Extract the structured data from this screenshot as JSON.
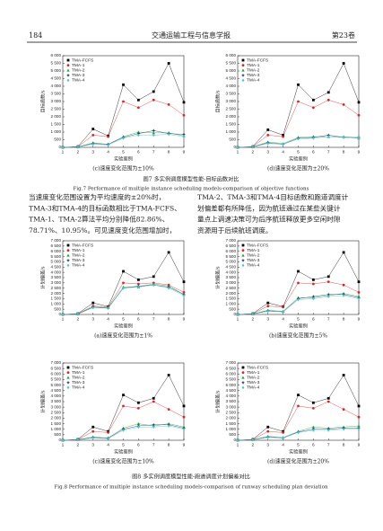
{
  "header": {
    "page": "184",
    "journal": "交通运输工程与信息学报",
    "volume": "第23卷"
  },
  "figure7": {
    "caption_cn": "图7  多实例调度模型性能-目标函数对比",
    "caption_en": "Fig.7  Performance of multiple instance scheduling models-comparison of objective functions"
  },
  "body": {
    "left_lines": [
      "当速度变化范围设置为平均速度的±20%时，",
      "TMA-3和TMA-4的目标函数相比于TMA-FCFS、",
      "TMA-1、TMA-2算法平均分别降低82.86%、",
      "78.71%、10.95%。可见速度变化范围增加时，"
    ],
    "right_lines": [
      "TMA-2、TMA-3和TMA-4目标函数和跑道调度计",
      "划偏差都有所降低，因为航班通过在某些关键计",
      "量点上调速决策可为后序航班释放更多空闲时隙",
      "资源用于后续航班调度。"
    ]
  },
  "figure8": {
    "caption_cn": "图8  多实例调度模型性能-跑道调度计划偏差对比",
    "caption_en": "Fig.8  Performance of multiple instance scheduling models-comparison of runway scheduling plan deviation"
  },
  "chart_data": [
    {
      "type": "line",
      "subtitle": "(c)速度变化范围为±10%",
      "x_label": "实验案例",
      "y_label": "目标函数/s",
      "x": [
        1,
        2,
        3,
        4,
        5,
        6,
        7,
        8,
        9
      ],
      "xlim": [
        1,
        9
      ],
      "xticks": [
        1,
        2,
        3,
        4,
        5,
        6,
        7,
        8,
        9
      ],
      "ylim": [
        0,
        6000
      ],
      "yticks": [
        0,
        500,
        {
          "value": 1000,
          "label": "1 000"
        },
        {
          "value": 1500,
          "label": "1 500"
        },
        {
          "value": 2000,
          "label": "2 000"
        },
        {
          "value": 2500,
          "label": "2 500"
        },
        {
          "value": 3000,
          "label": "3 000"
        },
        {
          "value": 3500,
          "label": "3 500"
        },
        {
          "value": 4000,
          "label": "4 000"
        },
        {
          "value": 4500,
          "label": "4 500"
        },
        {
          "value": 5000,
          "label": "5 000"
        },
        {
          "value": 5500,
          "label": "5 500"
        },
        {
          "value": 6000,
          "label": "6 000"
        }
      ],
      "series": [
        {
          "name": "TMA-FCFS",
          "color": "#000000",
          "marker": "square",
          "values": [
            0,
            50,
            1200,
            750,
            4100,
            3100,
            3650,
            5500,
            2950
          ]
        },
        {
          "name": "TMA-1",
          "color": "#d62728",
          "marker": "circle",
          "values": [
            0,
            40,
            800,
            700,
            3000,
            2600,
            3100,
            2800,
            2100
          ]
        },
        {
          "name": "TMA-2",
          "color": "#2ca02c",
          "marker": "triangle",
          "values": [
            0,
            30,
            300,
            200,
            700,
            1000,
            950,
            950,
            750
          ]
        },
        {
          "name": "TMA-3",
          "color": "#1f2f6e",
          "marker": "star",
          "values": [
            0,
            30,
            250,
            200,
            650,
            900,
            1100,
            900,
            850
          ]
        },
        {
          "name": "TMA-4",
          "color": "#3fc8d8",
          "marker": "diamond",
          "values": [
            0,
            30,
            200,
            150,
            600,
            800,
            800,
            850,
            700
          ]
        }
      ]
    },
    {
      "type": "line",
      "subtitle": "(d)速度变化范围为±20%",
      "x_label": "实验案例",
      "y_label": "目标函数/s",
      "x": [
        1,
        2,
        3,
        4,
        5,
        6,
        7,
        8,
        9
      ],
      "xlim": [
        1,
        9
      ],
      "xticks": [
        1,
        2,
        3,
        4,
        5,
        6,
        7,
        8,
        9
      ],
      "ylim": [
        0,
        6000
      ],
      "yticks": [
        0,
        500,
        {
          "value": 1000,
          "label": "1 000"
        },
        {
          "value": 1500,
          "label": "1 500"
        },
        {
          "value": 2000,
          "label": "2 000"
        },
        {
          "value": 2500,
          "label": "2 500"
        },
        {
          "value": 3000,
          "label": "3 000"
        },
        {
          "value": 3500,
          "label": "3 500"
        },
        {
          "value": 4000,
          "label": "4 000"
        },
        {
          "value": 4500,
          "label": "4 500"
        },
        {
          "value": 5000,
          "label": "5 000"
        },
        {
          "value": 5500,
          "label": "5 500"
        },
        {
          "value": 6000,
          "label": "6 000"
        }
      ],
      "series": [
        {
          "name": "TMA-FCFS",
          "color": "#000000",
          "marker": "square",
          "values": [
            0,
            50,
            1150,
            800,
            4100,
            3100,
            3600,
            5500,
            2950
          ]
        },
        {
          "name": "TMA-1",
          "color": "#d62728",
          "marker": "circle",
          "values": [
            0,
            40,
            800,
            700,
            3000,
            2600,
            3100,
            2800,
            2100
          ]
        },
        {
          "name": "TMA-2",
          "color": "#2ca02c",
          "marker": "triangle",
          "values": [
            0,
            30,
            350,
            250,
            650,
            700,
            700,
            700,
            600
          ]
        },
        {
          "name": "TMA-3",
          "color": "#1f2f6e",
          "marker": "star",
          "values": [
            0,
            30,
            300,
            200,
            600,
            650,
            800,
            650,
            650
          ]
        },
        {
          "name": "TMA-4",
          "color": "#3fc8d8",
          "marker": "diamond",
          "values": [
            0,
            25,
            250,
            200,
            550,
            600,
            700,
            650,
            600
          ]
        }
      ]
    },
    {
      "type": "line",
      "subtitle": "(a)速度变化范围为±1%",
      "x_label": "实验案例",
      "y_label": "计划偏差/s",
      "x": [
        1,
        2,
        3,
        4,
        5,
        6,
        7,
        8,
        9
      ],
      "xlim": [
        1,
        9
      ],
      "xticks": [
        1,
        2,
        3,
        4,
        5,
        6,
        7,
        8,
        9
      ],
      "ylim": [
        0,
        7000
      ],
      "yticks": [
        0,
        500,
        {
          "value": 1000,
          "label": "1 000"
        },
        {
          "value": 1500,
          "label": "1 500"
        },
        {
          "value": 2000,
          "label": "2 000"
        },
        {
          "value": 2500,
          "label": "2 500"
        },
        {
          "value": 3000,
          "label": "3 000"
        },
        {
          "value": 3500,
          "label": "3 500"
        },
        {
          "value": 4000,
          "label": "4 000"
        },
        {
          "value": 4500,
          "label": "4 500"
        },
        {
          "value": 5000,
          "label": "5 000"
        },
        {
          "value": 5500,
          "label": "5 500"
        },
        {
          "value": 6000,
          "label": "6 000"
        },
        {
          "value": 6500,
          "label": "6 500"
        },
        {
          "value": 7000,
          "label": "7 000"
        }
      ],
      "series": [
        {
          "name": "TMA-FCFS",
          "color": "#000000",
          "marker": "square",
          "values": [
            0,
            80,
            1100,
            750,
            4100,
            3300,
            3600,
            5900,
            3100
          ]
        },
        {
          "name": "TMA-1",
          "color": "#d62728",
          "marker": "circle",
          "values": [
            0,
            60,
            800,
            700,
            3000,
            2900,
            3000,
            2800,
            2100
          ]
        },
        {
          "name": "TMA-2",
          "color": "#2ca02c",
          "marker": "triangle",
          "values": [
            0,
            50,
            700,
            650,
            2600,
            2600,
            2900,
            2700,
            1900
          ]
        },
        {
          "name": "TMA-3",
          "color": "#1f2f6e",
          "marker": "star",
          "values": [
            0,
            50,
            700,
            600,
            2500,
            2700,
            2800,
            2600,
            1900
          ]
        },
        {
          "name": "TMA-4",
          "color": "#3fc8d8",
          "marker": "diamond",
          "values": [
            0,
            50,
            650,
            600,
            2500,
            2600,
            2800,
            2500,
            1800
          ]
        }
      ]
    },
    {
      "type": "line",
      "subtitle": "(b)速度变化范围为±5%",
      "x_label": "实验案例",
      "y_label": "计划偏差/s",
      "x": [
        1,
        2,
        3,
        4,
        5,
        6,
        7,
        8,
        9
      ],
      "xlim": [
        1,
        9
      ],
      "xticks": [
        1,
        2,
        3,
        4,
        5,
        6,
        7,
        8,
        9
      ],
      "ylim": [
        0,
        7000
      ],
      "yticks": [
        0,
        500,
        {
          "value": 1000,
          "label": "1 000"
        },
        {
          "value": 1500,
          "label": "1 500"
        },
        {
          "value": 2000,
          "label": "2 000"
        },
        {
          "value": 2500,
          "label": "2 500"
        },
        {
          "value": 3000,
          "label": "3 000"
        },
        {
          "value": 3500,
          "label": "3 500"
        },
        {
          "value": 4000,
          "label": "4 000"
        },
        {
          "value": 4500,
          "label": "4 500"
        },
        {
          "value": 5000,
          "label": "5 000"
        },
        {
          "value": 5500,
          "label": "5 500"
        },
        {
          "value": 6000,
          "label": "6 000"
        },
        {
          "value": 6500,
          "label": "6 500"
        },
        {
          "value": 7000,
          "label": "7 000"
        }
      ],
      "series": [
        {
          "name": "TMA-FCFS",
          "color": "#000000",
          "marker": "square",
          "values": [
            0,
            80,
            1100,
            750,
            4100,
            3300,
            3600,
            5900,
            3100
          ]
        },
        {
          "name": "TMA-1",
          "color": "#d62728",
          "marker": "circle",
          "values": [
            0,
            60,
            800,
            700,
            3000,
            2900,
            3100,
            2800,
            2100
          ]
        },
        {
          "name": "TMA-2",
          "color": "#2ca02c",
          "marker": "triangle",
          "values": [
            0,
            50,
            400,
            300,
            1600,
            1600,
            1800,
            2000,
            1700
          ]
        },
        {
          "name": "TMA-3",
          "color": "#1f2f6e",
          "marker": "star",
          "values": [
            0,
            50,
            350,
            250,
            1500,
            1700,
            1900,
            1900,
            1600
          ]
        },
        {
          "name": "TMA-4",
          "color": "#3fc8d8",
          "marker": "diamond",
          "values": [
            0,
            40,
            300,
            250,
            1400,
            1500,
            1700,
            1800,
            1500
          ]
        }
      ]
    },
    {
      "type": "line",
      "subtitle": "(c)速度变化范围为±10%",
      "x_label": "实验案例",
      "y_label": "计划偏差/s",
      "x": [
        1,
        2,
        3,
        4,
        5,
        6,
        7,
        8,
        9
      ],
      "xlim": [
        1,
        9
      ],
      "xticks": [
        1,
        2,
        3,
        4,
        5,
        6,
        7,
        8,
        9
      ],
      "ylim": [
        0,
        7000
      ],
      "yticks": [
        0,
        500,
        {
          "value": 1000,
          "label": "1 000"
        },
        {
          "value": 1500,
          "label": "1 500"
        },
        {
          "value": 2000,
          "label": "2 000"
        },
        {
          "value": 2500,
          "label": "2 500"
        },
        {
          "value": 3000,
          "label": "3 000"
        },
        {
          "value": 3500,
          "label": "3 500"
        },
        {
          "value": 4000,
          "label": "4 000"
        },
        {
          "value": 4500,
          "label": "4 500"
        },
        {
          "value": 5000,
          "label": "5 000"
        },
        {
          "value": 5500,
          "label": "5 500"
        },
        {
          "value": 6000,
          "label": "6 000"
        },
        {
          "value": 6500,
          "label": "6 500"
        },
        {
          "value": 7000,
          "label": "7 000"
        }
      ],
      "series": [
        {
          "name": "TMA-FCFS",
          "color": "#000000",
          "marker": "square",
          "values": [
            0,
            80,
            1200,
            800,
            4100,
            3400,
            3800,
            5900,
            3100
          ]
        },
        {
          "name": "TMA-1",
          "color": "#d62728",
          "marker": "circle",
          "values": [
            0,
            60,
            800,
            700,
            3100,
            2900,
            3500,
            2800,
            2100
          ]
        },
        {
          "name": "TMA-2",
          "color": "#2ca02c",
          "marker": "triangle",
          "values": [
            0,
            50,
            300,
            200,
            1100,
            1500,
            1300,
            1500,
            1200
          ]
        },
        {
          "name": "TMA-3",
          "color": "#1f2f6e",
          "marker": "star",
          "values": [
            0,
            50,
            250,
            200,
            1000,
            1300,
            1400,
            1400,
            1100
          ]
        },
        {
          "name": "TMA-4",
          "color": "#3fc8d8",
          "marker": "diamond",
          "values": [
            0,
            40,
            200,
            150,
            900,
            1200,
            1200,
            1300,
            1000
          ]
        }
      ]
    },
    {
      "type": "line",
      "subtitle": "(d)速度变化范围为±20%",
      "x_label": "实验案例",
      "y_label": "计划偏差/s",
      "x": [
        1,
        2,
        3,
        4,
        5,
        6,
        7,
        8,
        9
      ],
      "xlim": [
        1,
        9
      ],
      "xticks": [
        1,
        2,
        3,
        4,
        5,
        6,
        7,
        8,
        9
      ],
      "ylim": [
        0,
        7000
      ],
      "yticks": [
        0,
        500,
        {
          "value": 1000,
          "label": "1 000"
        },
        {
          "value": 1500,
          "label": "1 500"
        },
        {
          "value": 2000,
          "label": "2 000"
        },
        {
          "value": 2500,
          "label": "2 500"
        },
        {
          "value": 3000,
          "label": "3 000"
        },
        {
          "value": 3500,
          "label": "3 500"
        },
        {
          "value": 4000,
          "label": "4 000"
        },
        {
          "value": 4500,
          "label": "4 500"
        },
        {
          "value": 5000,
          "label": "5 000"
        },
        {
          "value": 5500,
          "label": "5 500"
        },
        {
          "value": 6000,
          "label": "6 000"
        },
        {
          "value": 6500,
          "label": "6 500"
        },
        {
          "value": 7000,
          "label": "7 000"
        }
      ],
      "series": [
        {
          "name": "TMA-FCFS",
          "color": "#000000",
          "marker": "square",
          "values": [
            0,
            80,
            1200,
            800,
            4100,
            3400,
            3800,
            5900,
            3100
          ]
        },
        {
          "name": "TMA-1",
          "color": "#d62728",
          "marker": "circle",
          "values": [
            0,
            60,
            800,
            700,
            3100,
            2900,
            3500,
            2800,
            2100
          ]
        },
        {
          "name": "TMA-2",
          "color": "#2ca02c",
          "marker": "triangle",
          "values": [
            0,
            50,
            350,
            250,
            800,
            1200,
            1100,
            1200,
            1300
          ]
        },
        {
          "name": "TMA-3",
          "color": "#1f2f6e",
          "marker": "star",
          "values": [
            0,
            40,
            300,
            200,
            750,
            1000,
            1000,
            1100,
            1100
          ]
        },
        {
          "name": "TMA-4",
          "color": "#3fc8d8",
          "marker": "diamond",
          "values": [
            0,
            40,
            250,
            200,
            700,
            900,
            900,
            1000,
            1000
          ]
        }
      ]
    }
  ]
}
